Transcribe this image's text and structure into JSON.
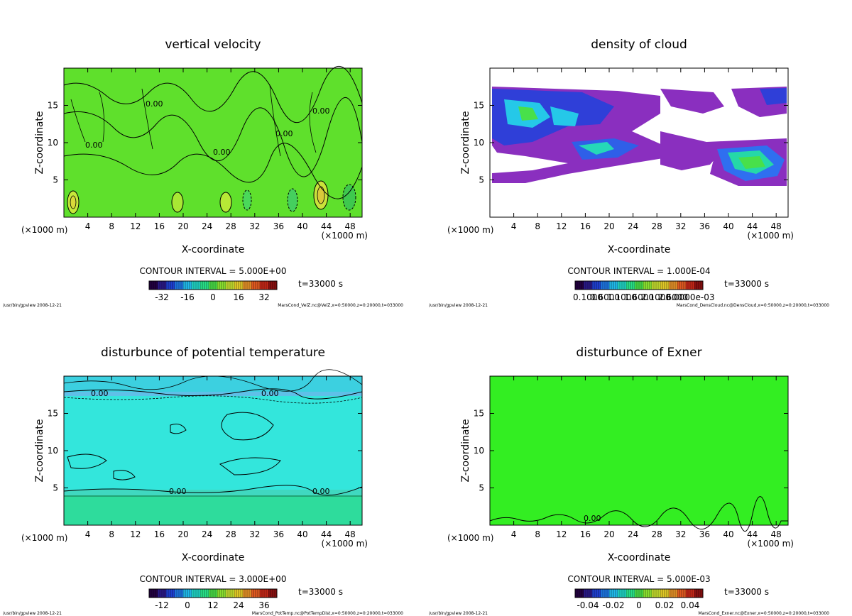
{
  "footer_left": "/usr/bin/gpview  2008-12-21",
  "chart_data": [
    {
      "type": "heatmap",
      "title": "vertical velocity",
      "xlabel": "X-coordinate",
      "ylabel": "Z-coordinate",
      "x_unit": "(×1000 m)",
      "xlim": [
        0,
        50
      ],
      "ylim": [
        0,
        20
      ],
      "xticks": [
        "4",
        "8",
        "12",
        "16",
        "20",
        "24",
        "28",
        "32",
        "36",
        "40",
        "44",
        "48"
      ],
      "yticks": [
        "5",
        "10",
        "15"
      ],
      "background": "#5fe02c",
      "contour_interval": "CONTOUR INTERVAL = 5.000E+00",
      "time": "t=33000 s",
      "colorbar_ticks": [
        "-32",
        "-16",
        "0",
        "16",
        "32"
      ],
      "contour_labels": [
        "0.00",
        "0.00",
        "0.00",
        "0.00",
        "0.00"
      ],
      "features": [
        {
          "x": 1.5,
          "z": 2.5,
          "kind": "updraft"
        },
        {
          "x": 19,
          "z": 2.5,
          "kind": "updraft"
        },
        {
          "x": 27,
          "z": 2.5,
          "kind": "updraft"
        },
        {
          "x": 43,
          "z": 3,
          "kind": "updraft"
        },
        {
          "x": 48,
          "z": 2.5,
          "kind": "downdraft"
        }
      ],
      "source": "MarsCond_VelZ.nc@VelZ,x=0:50000,z=0:20000,t=033000"
    },
    {
      "type": "heatmap",
      "title": "density of cloud",
      "xlabel": "X-coordinate",
      "ylabel": "Z-coordinate",
      "x_unit": "(×1000 m)",
      "xlim": [
        0,
        50
      ],
      "ylim": [
        0,
        20
      ],
      "xticks": [
        "4",
        "8",
        "12",
        "16",
        "20",
        "24",
        "28",
        "32",
        "36",
        "40",
        "44",
        "48"
      ],
      "yticks": [
        "5",
        "10",
        "15"
      ],
      "background": "#ffffff",
      "contour_interval": "CONTOUR INTERVAL = 1.000E-04",
      "time": "t=33000 s",
      "colorbar_ticks": [
        "0.1000",
        "0.6000",
        "1.1000",
        "1.6000",
        "2.1000",
        "2.6000",
        "3.0000e-03"
      ],
      "source": "MarsCond_DensCloud.nc@DensCloud,x=0:50000,z=0:20000,t=033000"
    },
    {
      "type": "heatmap",
      "title": "disturbunce of potential temperature",
      "xlabel": "X-coordinate",
      "ylabel": "Z-coordinate",
      "x_unit": "(×1000 m)",
      "xlim": [
        0,
        50
      ],
      "ylim": [
        0,
        20
      ],
      "xticks": [
        "4",
        "8",
        "12",
        "16",
        "20",
        "24",
        "28",
        "32",
        "36",
        "40",
        "44",
        "48"
      ],
      "yticks": [
        "5",
        "10",
        "15"
      ],
      "background": "#33e6dc",
      "contour_interval": "CONTOUR INTERVAL = 3.000E+00",
      "time": "t=33000 s",
      "colorbar_ticks": [
        "-12",
        "0",
        "12",
        "24",
        "36"
      ],
      "contour_labels": [
        "0.00",
        "0.00",
        "0.00",
        "0.00"
      ],
      "source": "MarsCond_PotTemp.nc@PotTempDist,x=0:50000,z=0:20000,t=033000"
    },
    {
      "type": "heatmap",
      "title": "disturbunce of Exner",
      "xlabel": "X-coordinate",
      "ylabel": "Z-coordinate",
      "x_unit": "(×1000 m)",
      "xlim": [
        0,
        50
      ],
      "ylim": [
        0,
        20
      ],
      "xticks": [
        "4",
        "8",
        "12",
        "16",
        "20",
        "24",
        "28",
        "32",
        "36",
        "40",
        "44",
        "48"
      ],
      "yticks": [
        "5",
        "10",
        "15"
      ],
      "background": "#33ee22",
      "contour_interval": "CONTOUR INTERVAL = 5.000E-03",
      "time": "t=33000 s",
      "colorbar_ticks": [
        "-0.04",
        "-0.02",
        "0",
        "0.02",
        "0.04"
      ],
      "contour_labels": [
        "0.00"
      ],
      "source": "MarsCond_Exner.nc@Exner,x=0:50000,z=0:20000,t=033000"
    }
  ]
}
